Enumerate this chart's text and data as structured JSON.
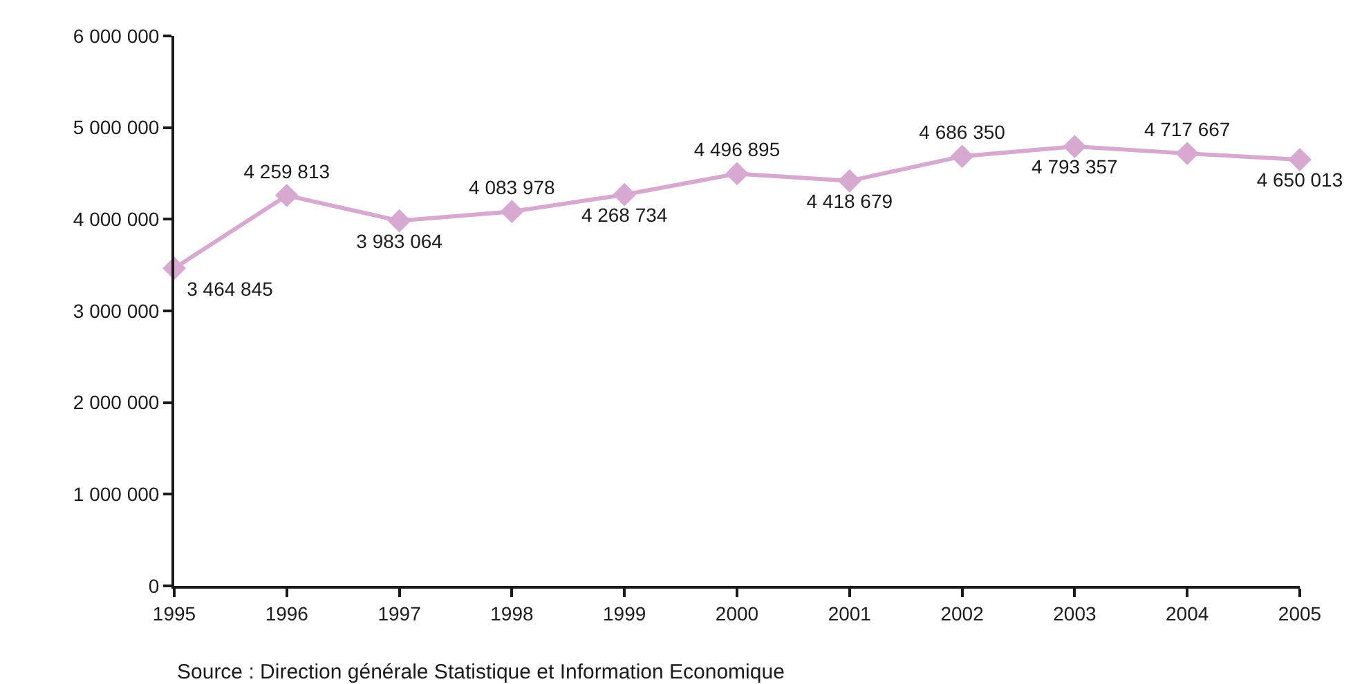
{
  "chart_data": {
    "type": "line",
    "x": [
      1995,
      1996,
      1997,
      1998,
      1999,
      2000,
      2001,
      2002,
      2003,
      2004,
      2005
    ],
    "series": [
      {
        "color": "#d7a9d1",
        "values": [
          3464845,
          4259813,
          3983064,
          4083978,
          4268734,
          4496895,
          4418679,
          4686350,
          4793357,
          4717667,
          4650013
        ],
        "value_labels": [
          "3 464 845",
          "4 259 813",
          "3 983 064",
          "4 083 978",
          "4 268 734",
          "4 496 895",
          "4 418 679",
          "4 686 350",
          "4 793 357",
          "4 717 667",
          "4 650 013"
        ]
      }
    ],
    "xlim": [
      1995,
      2005
    ],
    "xticks": [
      1995,
      1996,
      1997,
      1998,
      1999,
      2000,
      2001,
      2002,
      2003,
      2004,
      2005
    ],
    "ylim": [
      0,
      6000000
    ],
    "yticks": [
      0,
      {
        "value": 1000000,
        "label": "1 000 000"
      },
      {
        "value": 2000000,
        "label": "2 000 000"
      },
      {
        "value": 3000000,
        "label": "3 000 000"
      },
      {
        "value": 4000000,
        "label": "4 000 000"
      },
      {
        "value": 5000000,
        "label": "5 000 000"
      },
      {
        "value": 6000000,
        "label": "6 000 000"
      }
    ],
    "marker": "diamond",
    "line_style": "solid",
    "annotations": [
      "Source : Direction générale Statistique et Information Economique"
    ]
  }
}
